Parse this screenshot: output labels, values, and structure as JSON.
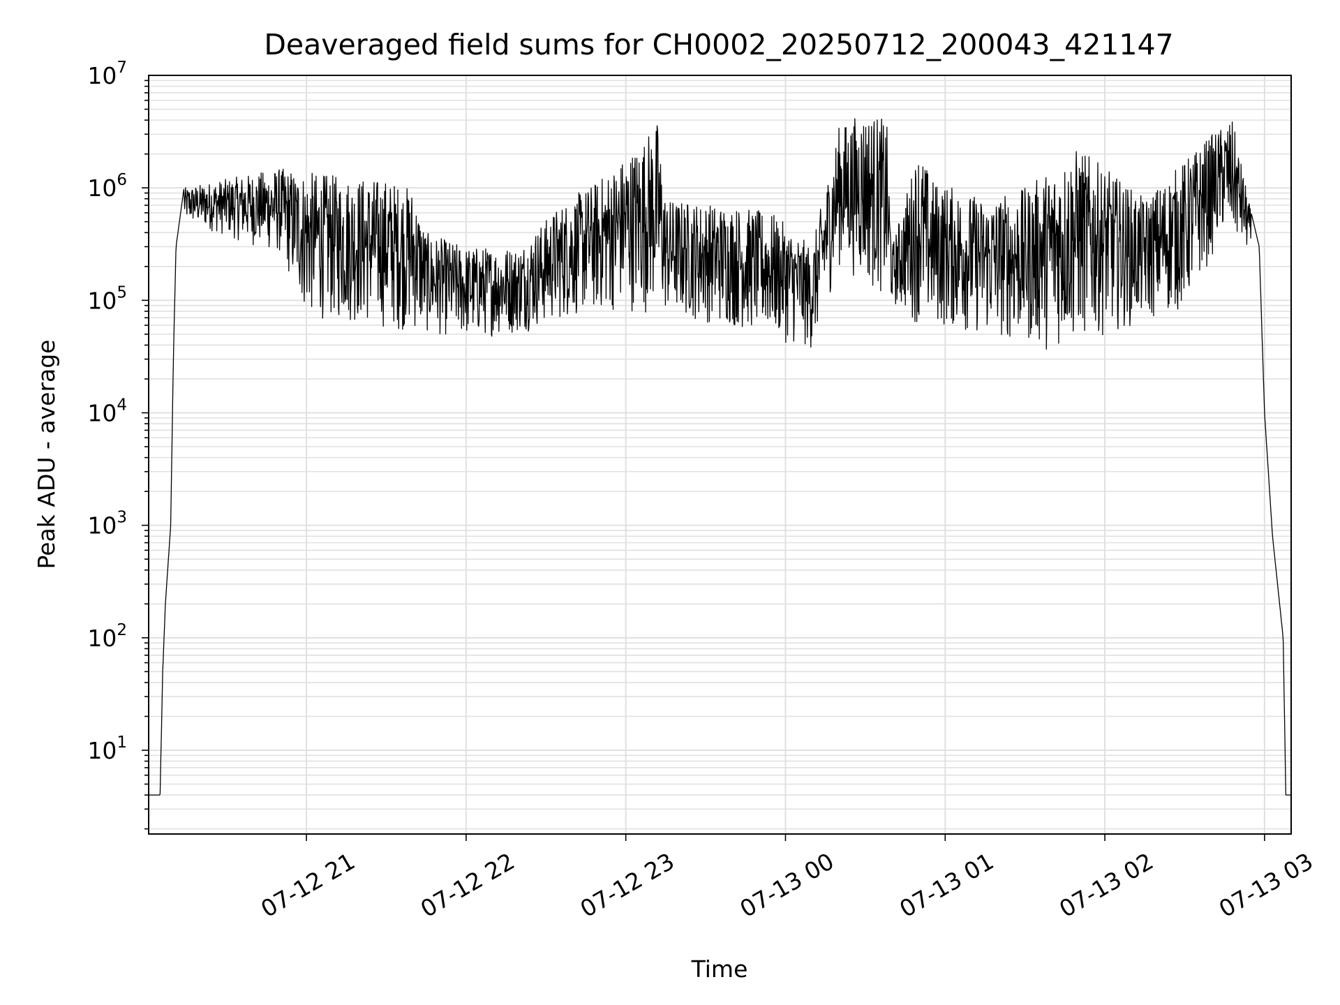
{
  "chart_data": {
    "type": "line",
    "title": "Deaveraged field sums for CH0002_20250712_200043_421147",
    "xlabel": "Time",
    "ylabel": "Peak ADU - average",
    "yscale": "log",
    "ylim": [
      1.8,
      10000000
    ],
    "xlim": [
      "2025-07-12 20:00:43",
      "2025-07-13 03:10:00"
    ],
    "grid": true,
    "line_color": "#000000",
    "grid_color": "#e0e0e0",
    "x_ticks": [
      {
        "time": "2025-07-12 21:00",
        "label": "07-12 21"
      },
      {
        "time": "2025-07-12 22:00",
        "label": "07-12 22"
      },
      {
        "time": "2025-07-12 23:00",
        "label": "07-12 23"
      },
      {
        "time": "2025-07-13 00:00",
        "label": "07-13 00"
      },
      {
        "time": "2025-07-13 01:00",
        "label": "07-13 01"
      },
      {
        "time": "2025-07-13 02:00",
        "label": "07-13 02"
      },
      {
        "time": "2025-07-13 03:00",
        "label": "07-13 03"
      }
    ],
    "y_ticks": [
      {
        "value": 10,
        "base": "10",
        "exp": "1"
      },
      {
        "value": 100,
        "base": "10",
        "exp": "2"
      },
      {
        "value": 1000,
        "base": "10",
        "exp": "3"
      },
      {
        "value": 10000,
        "base": "10",
        "exp": "4"
      },
      {
        "value": 100000,
        "base": "10",
        "exp": "5"
      },
      {
        "value": 1000000,
        "base": "10",
        "exp": "6"
      },
      {
        "value": 10000000,
        "base": "10",
        "exp": "7"
      }
    ],
    "series": [
      {
        "upper_envelope": [
          [
            "2025-07-12 20:00:43",
            4
          ],
          [
            "2025-07-12 20:05",
            4
          ],
          [
            "2025-07-12 20:06",
            50
          ],
          [
            "2025-07-12 20:07",
            200
          ],
          [
            "2025-07-12 20:09",
            1000
          ],
          [
            "2025-07-12 20:10",
            30000
          ],
          [
            "2025-07-12 20:11",
            300000
          ],
          [
            "2025-07-12 20:14",
            1000000
          ],
          [
            "2025-07-12 20:30",
            1200000
          ],
          [
            "2025-07-12 20:50",
            1500000
          ],
          [
            "2025-07-12 21:10",
            1300000
          ],
          [
            "2025-07-12 21:30",
            1200000
          ],
          [
            "2025-07-12 21:40",
            1000000
          ],
          [
            "2025-07-12 21:45",
            400000
          ],
          [
            "2025-07-12 22:00",
            300000
          ],
          [
            "2025-07-12 22:20",
            300000
          ],
          [
            "2025-07-12 22:35",
            700000
          ],
          [
            "2025-07-12 22:50",
            1200000
          ],
          [
            "2025-07-12 23:05",
            2500000
          ],
          [
            "2025-07-12 23:12",
            4000000
          ],
          [
            "2025-07-12 23:15",
            800000
          ],
          [
            "2025-07-12 23:40",
            700000
          ],
          [
            "2025-07-12 23:55",
            600000
          ],
          [
            "2025-07-13 00:10",
            300000
          ],
          [
            "2025-07-13 00:20",
            3500000
          ],
          [
            "2025-07-13 00:30",
            5000000
          ],
          [
            "2025-07-13 00:38",
            4000000
          ],
          [
            "2025-07-13 00:40",
            300000
          ],
          [
            "2025-07-13 00:50",
            2300000
          ],
          [
            "2025-07-13 00:55",
            1200000
          ],
          [
            "2025-07-13 01:15",
            800000
          ],
          [
            "2025-07-13 01:30",
            1000000
          ],
          [
            "2025-07-13 01:50",
            2300000
          ],
          [
            "2025-07-13 02:15",
            800000
          ],
          [
            "2025-07-13 02:40",
            3000000
          ],
          [
            "2025-07-13 02:48",
            4000000
          ],
          [
            "2025-07-13 02:55",
            600000
          ],
          [
            "2025-07-13 02:58",
            300000
          ],
          [
            "2025-07-13 03:00",
            10000
          ],
          [
            "2025-07-13 03:03",
            800
          ],
          [
            "2025-07-13 03:07",
            100
          ],
          [
            "2025-07-13 03:08",
            4
          ],
          [
            "2025-07-13 03:10",
            4
          ]
        ],
        "lower_envelope": [
          [
            "2025-07-12 20:14",
            500000
          ],
          [
            "2025-07-12 20:50",
            250000
          ],
          [
            "2025-07-12 21:00",
            70000
          ],
          [
            "2025-07-12 21:30",
            55000
          ],
          [
            "2025-07-12 22:00",
            45000
          ],
          [
            "2025-07-12 22:20",
            50000
          ],
          [
            "2025-07-12 22:40",
            70000
          ],
          [
            "2025-07-12 23:00",
            80000
          ],
          [
            "2025-07-12 23:20",
            70000
          ],
          [
            "2025-07-12 23:50",
            50000
          ],
          [
            "2025-07-13 00:10",
            35000
          ],
          [
            "2025-07-13 00:20",
            200000
          ],
          [
            "2025-07-13 00:38",
            100000
          ],
          [
            "2025-07-13 00:50",
            60000
          ],
          [
            "2025-07-13 01:20",
            45000
          ],
          [
            "2025-07-13 01:40",
            35000
          ],
          [
            "2025-07-13 02:00",
            50000
          ],
          [
            "2025-07-13 02:30",
            80000
          ],
          [
            "2025-07-13 02:45",
            400000
          ],
          [
            "2025-07-13 02:55",
            250000
          ]
        ]
      }
    ]
  }
}
